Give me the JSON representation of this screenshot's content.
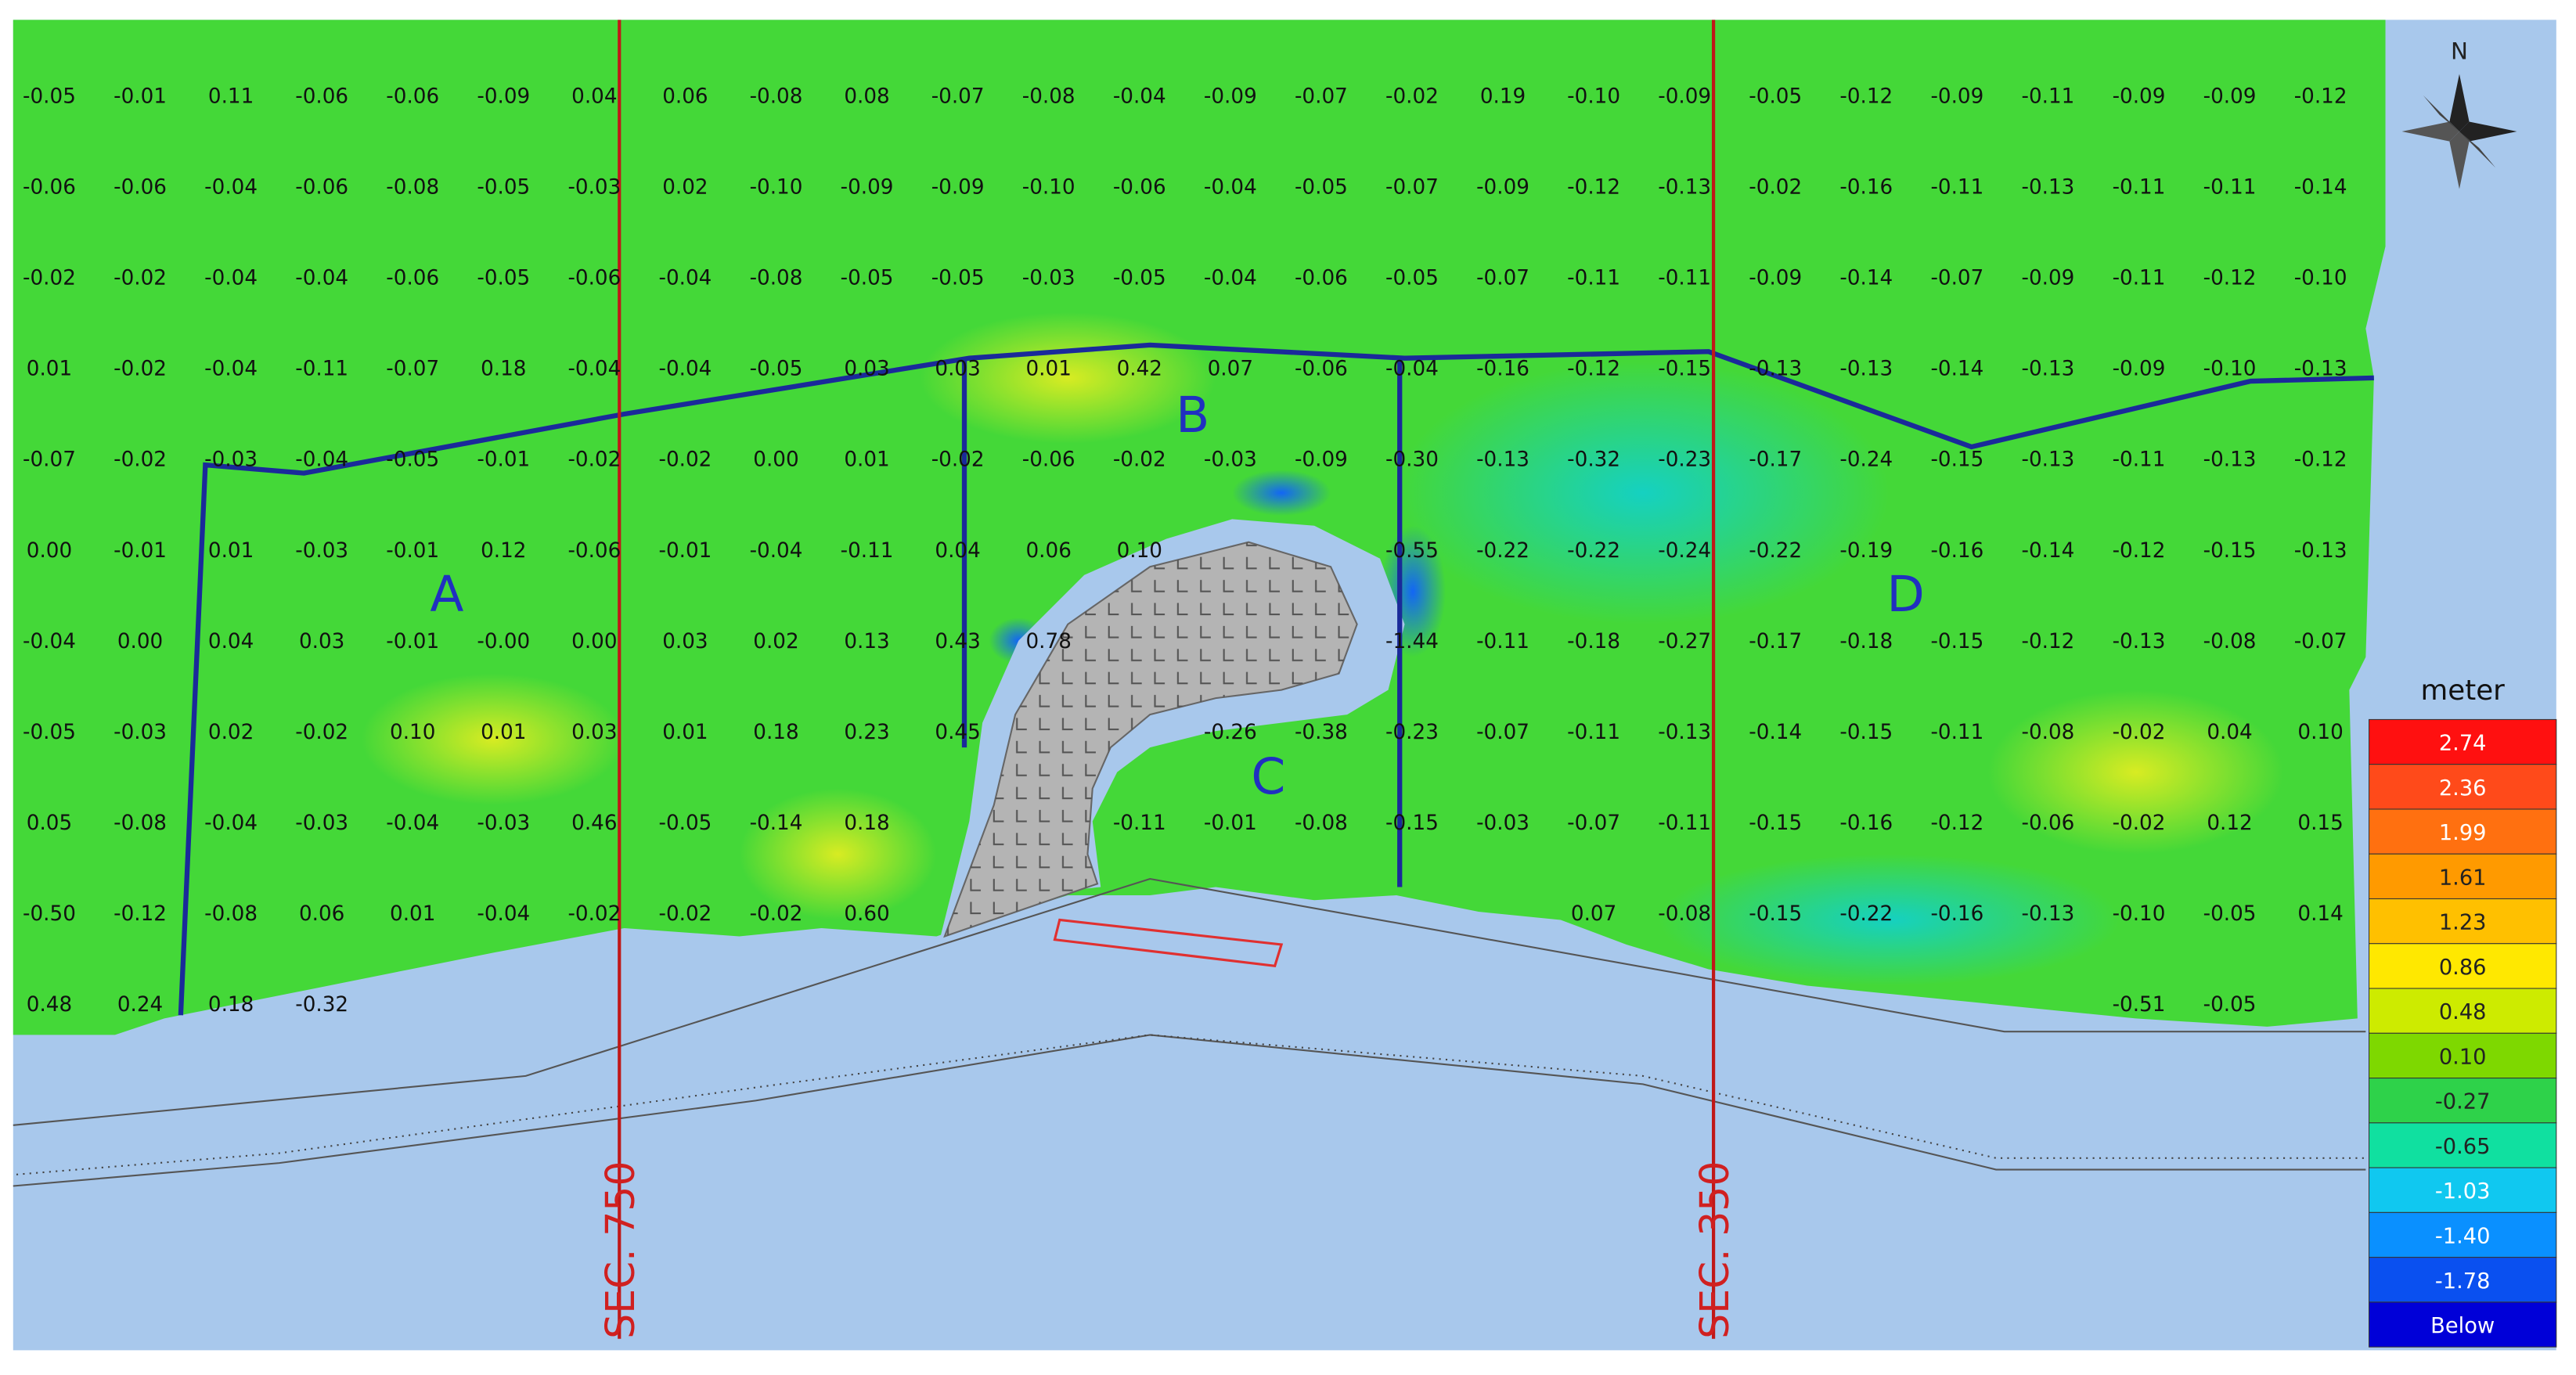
{
  "grid": {
    "rows": [
      [
        "-0.05",
        "-0.01",
        "0.11",
        "-0.06",
        "-0.06",
        "-0.09",
        "0.04",
        "0.06",
        "-0.08",
        "0.08",
        "-0.07",
        "-0.08",
        "-0.04",
        "-0.09",
        "-0.07",
        "-0.02",
        "0.19",
        "-0.10",
        "-0.09",
        "-0.05",
        "-0.12",
        "-0.09",
        "-0.11",
        "-0.09",
        "-0.09",
        "-0.12"
      ],
      [
        "-0.06",
        "-0.06",
        "-0.04",
        "-0.06",
        "-0.08",
        "-0.05",
        "-0.03",
        "0.02",
        "-0.10",
        "-0.09",
        "-0.09",
        "-0.10",
        "-0.06",
        "-0.04",
        "-0.05",
        "-0.07",
        "-0.09",
        "-0.12",
        "-0.13",
        "-0.02",
        "-0.16",
        "-0.11",
        "-0.13",
        "-0.11",
        "-0.11",
        "-0.14"
      ],
      [
        "-0.02",
        "-0.02",
        "-0.04",
        "-0.04",
        "-0.06",
        "-0.05",
        "-0.06",
        "-0.04",
        "-0.08",
        "-0.05",
        "-0.05",
        "-0.03",
        "-0.05",
        "-0.04",
        "-0.06",
        "-0.05",
        "-0.07",
        "-0.11",
        "-0.11",
        "-0.09",
        "-0.14",
        "-0.07",
        "-0.09",
        "-0.11",
        "-0.12",
        "-0.10"
      ],
      [
        "0.01",
        "-0.02",
        "-0.04",
        "-0.11",
        "-0.07",
        "0.18",
        "-0.04",
        "-0.04",
        "-0.05",
        "0.03",
        "0.03",
        "0.01",
        "0.42",
        "0.07",
        "-0.06",
        "-0.04",
        "-0.16",
        "-0.12",
        "-0.15",
        "-0.13",
        "-0.13",
        "-0.14",
        "-0.13",
        "-0.09",
        "-0.10",
        "-0.13"
      ],
      [
        "-0.07",
        "-0.02",
        "-0.03",
        "-0.04",
        "-0.05",
        "-0.01",
        "-0.02",
        "-0.02",
        "0.00",
        "0.01",
        "-0.02",
        "-0.06",
        "-0.02",
        "-0.03",
        "-0.09",
        "-0.30",
        "-0.13",
        "-0.32",
        "-0.23",
        "-0.17",
        "-0.24",
        "-0.15",
        "-0.13",
        "-0.11",
        "-0.13",
        "-0.12"
      ],
      [
        "0.00",
        "-0.01",
        "0.01",
        "-0.03",
        "-0.01",
        "0.12",
        "-0.06",
        "-0.01",
        "-0.04",
        "-0.11",
        "0.04",
        "0.06",
        "0.10",
        null,
        null,
        "-0.55",
        "-0.22",
        "-0.22",
        "-0.24",
        "-0.22",
        "-0.19",
        "-0.16",
        "-0.14",
        "-0.12",
        "-0.15",
        "-0.13"
      ],
      [
        "-0.04",
        "0.00",
        "0.04",
        "0.03",
        "-0.01",
        "-0.00",
        "0.00",
        "0.03",
        "0.02",
        "0.13",
        "0.43",
        "0.78",
        null,
        null,
        null,
        "-1.44",
        "-0.11",
        "-0.18",
        "-0.27",
        "-0.17",
        "-0.18",
        "-0.15",
        "-0.12",
        "-0.13",
        "-0.08",
        "-0.07"
      ],
      [
        "-0.05",
        "-0.03",
        "0.02",
        "-0.02",
        "0.10",
        "0.01",
        "0.03",
        "0.01",
        "0.18",
        "0.23",
        "0.45",
        null,
        null,
        "-0.26",
        "-0.38",
        "-0.23",
        "-0.07",
        "-0.11",
        "-0.13",
        "-0.14",
        "-0.15",
        "-0.11",
        "-0.08",
        "-0.02",
        "0.04",
        "0.10"
      ],
      [
        "0.05",
        "-0.08",
        "-0.04",
        "-0.03",
        "-0.04",
        "-0.03",
        "0.46",
        "-0.05",
        "-0.14",
        "0.18",
        null,
        null,
        "-0.11",
        "-0.01",
        "-0.08",
        "-0.15",
        "-0.03",
        "-0.07",
        "-0.11",
        "-0.15",
        "-0.16",
        "-0.12",
        "-0.06",
        "-0.02",
        "0.12",
        "0.15"
      ],
      [
        "-0.50",
        "-0.12",
        "-0.08",
        "0.06",
        "0.01",
        "-0.04",
        "-0.02",
        "-0.02",
        "-0.02",
        "0.60",
        null,
        null,
        null,
        null,
        null,
        null,
        null,
        "0.07",
        "-0.08",
        "-0.15",
        "-0.22",
        "-0.16",
        "-0.13",
        "-0.10",
        "-0.05",
        "0.14"
      ],
      [
        "0.48",
        "0.24",
        "0.18",
        "-0.32",
        null,
        null,
        null,
        null,
        null,
        null,
        null,
        null,
        null,
        null,
        null,
        null,
        null,
        null,
        null,
        null,
        null,
        null,
        null,
        "-0.51",
        "-0.05",
        null
      ]
    ]
  },
  "zone_labels": [
    "A",
    "B",
    "C",
    "D"
  ],
  "section_labels": [
    "SEC. 750",
    "SEC. 350"
  ],
  "compass": "N",
  "legend": {
    "title": "meter",
    "levels": [
      {
        "label": "2.74",
        "color": "#ff1010"
      },
      {
        "label": "2.36",
        "color": "#ff4a1a"
      },
      {
        "label": "1.99",
        "color": "#ff7010"
      },
      {
        "label": "1.61",
        "color": "#ff9a00"
      },
      {
        "label": "1.23",
        "color": "#ffc000"
      },
      {
        "label": "0.86",
        "color": "#ffe800"
      },
      {
        "label": "0.48",
        "color": "#cdeb00"
      },
      {
        "label": "0.10",
        "color": "#7ed800"
      },
      {
        "label": "-0.27",
        "color": "#2ed24a"
      },
      {
        "label": "-0.65",
        "color": "#10e0a0"
      },
      {
        "label": "-1.03",
        "color": "#10c8f0"
      },
      {
        "label": "-1.40",
        "color": "#0a90ff"
      },
      {
        "label": "-1.78",
        "color": "#0a50f0"
      },
      {
        "label": "Below",
        "color": "#0000d8"
      }
    ]
  }
}
